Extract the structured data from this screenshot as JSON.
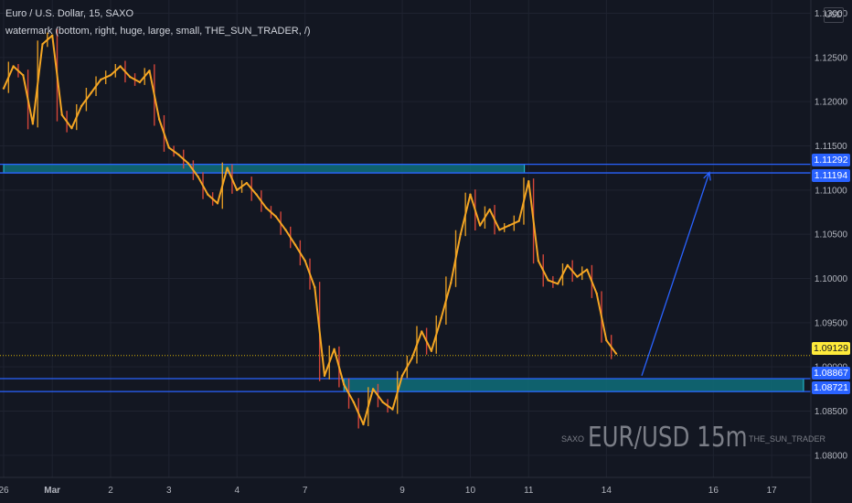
{
  "header": {
    "symbol_line": "Euro / U.S. Dollar, 15, SAXO",
    "study_line": "watermark (bottom, right, huge, large, small, THE_SUN_TRADER, /)"
  },
  "currency_button": "USD",
  "watermark": {
    "left": "SAXO",
    "center": "EUR/USD 15m",
    "right": "THE_SUN_TRADER"
  },
  "price_tags": {
    "zone_top_upper": "1.11292",
    "zone_top_lower": "1.11194",
    "last_price": "1.09129",
    "zone_bottom_upper": "1.08867",
    "zone_bottom_lower": "1.08721"
  },
  "colors": {
    "background": "#131722",
    "candle": "#f5a623",
    "candle_down": "#e84a3c",
    "zone_line": "#2962ff",
    "zone_fill": "#0f6e7a",
    "zone_border": "#26c6da",
    "arrow": "#2962ff",
    "last_price_tag": "#ffeb3b"
  },
  "chart_data": {
    "type": "line",
    "title": "Euro / U.S. Dollar, 15, SAXO",
    "xlabel": "",
    "ylabel": "",
    "ylim": [
      1.0775,
      1.1315
    ],
    "grid": true,
    "y_ticks": [
      "1.08000",
      "1.08500",
      "1.09000",
      "1.09500",
      "1.10000",
      "1.10500",
      "1.11000",
      "1.11500",
      "1.12000",
      "1.12500",
      "1.13000"
    ],
    "y_tick_values": [
      1.08,
      1.085,
      1.09,
      1.095,
      1.1,
      1.105,
      1.11,
      1.115,
      1.12,
      1.125,
      1.13
    ],
    "x_ticks": [
      "26",
      "Mar",
      "2",
      "3",
      "4",
      "7",
      "9",
      "10",
      "11",
      "14",
      "16",
      "17"
    ],
    "x_tick_index": [
      0,
      5,
      11,
      17,
      24,
      31,
      41,
      48,
      54,
      62,
      73,
      79
    ],
    "series": [
      {
        "values": [
          1.1215,
          1.124,
          1.123,
          1.1175,
          1.1265,
          1.1275,
          1.1185,
          1.117,
          1.1195,
          1.121,
          1.1225,
          1.123,
          1.124,
          1.1228,
          1.1222,
          1.1235,
          1.118,
          1.1148,
          1.114,
          1.113,
          1.1115,
          1.1095,
          1.1085,
          1.1125,
          1.11,
          1.1108,
          1.1095,
          1.108,
          1.107,
          1.1055,
          1.1038,
          1.102,
          1.099,
          1.089,
          1.092,
          1.088,
          1.086,
          1.0835,
          1.0875,
          1.086,
          1.0852,
          1.089,
          1.091,
          1.094,
          1.0918,
          1.0955,
          1.0995,
          1.105,
          1.1095,
          1.106,
          1.1078,
          1.1055,
          1.106,
          1.1065,
          1.111,
          1.102,
          1.0998,
          1.0994,
          1.1015,
          1.1002,
          1.101,
          1.0983,
          1.093,
          1.0915
        ]
      }
    ],
    "horizontal_levels": [
      1.11292,
      1.11194,
      1.08867,
      1.08721
    ],
    "last_price": 1.09129,
    "resistance_zone": {
      "low": 1.11194,
      "high": 1.11292
    },
    "support_zone": {
      "low": 1.08721,
      "high": 1.08867
    },
    "projection": {
      "from_x_index": 64,
      "from_y": 1.089,
      "to_x_index": 69,
      "to_y": 1.112
    }
  }
}
